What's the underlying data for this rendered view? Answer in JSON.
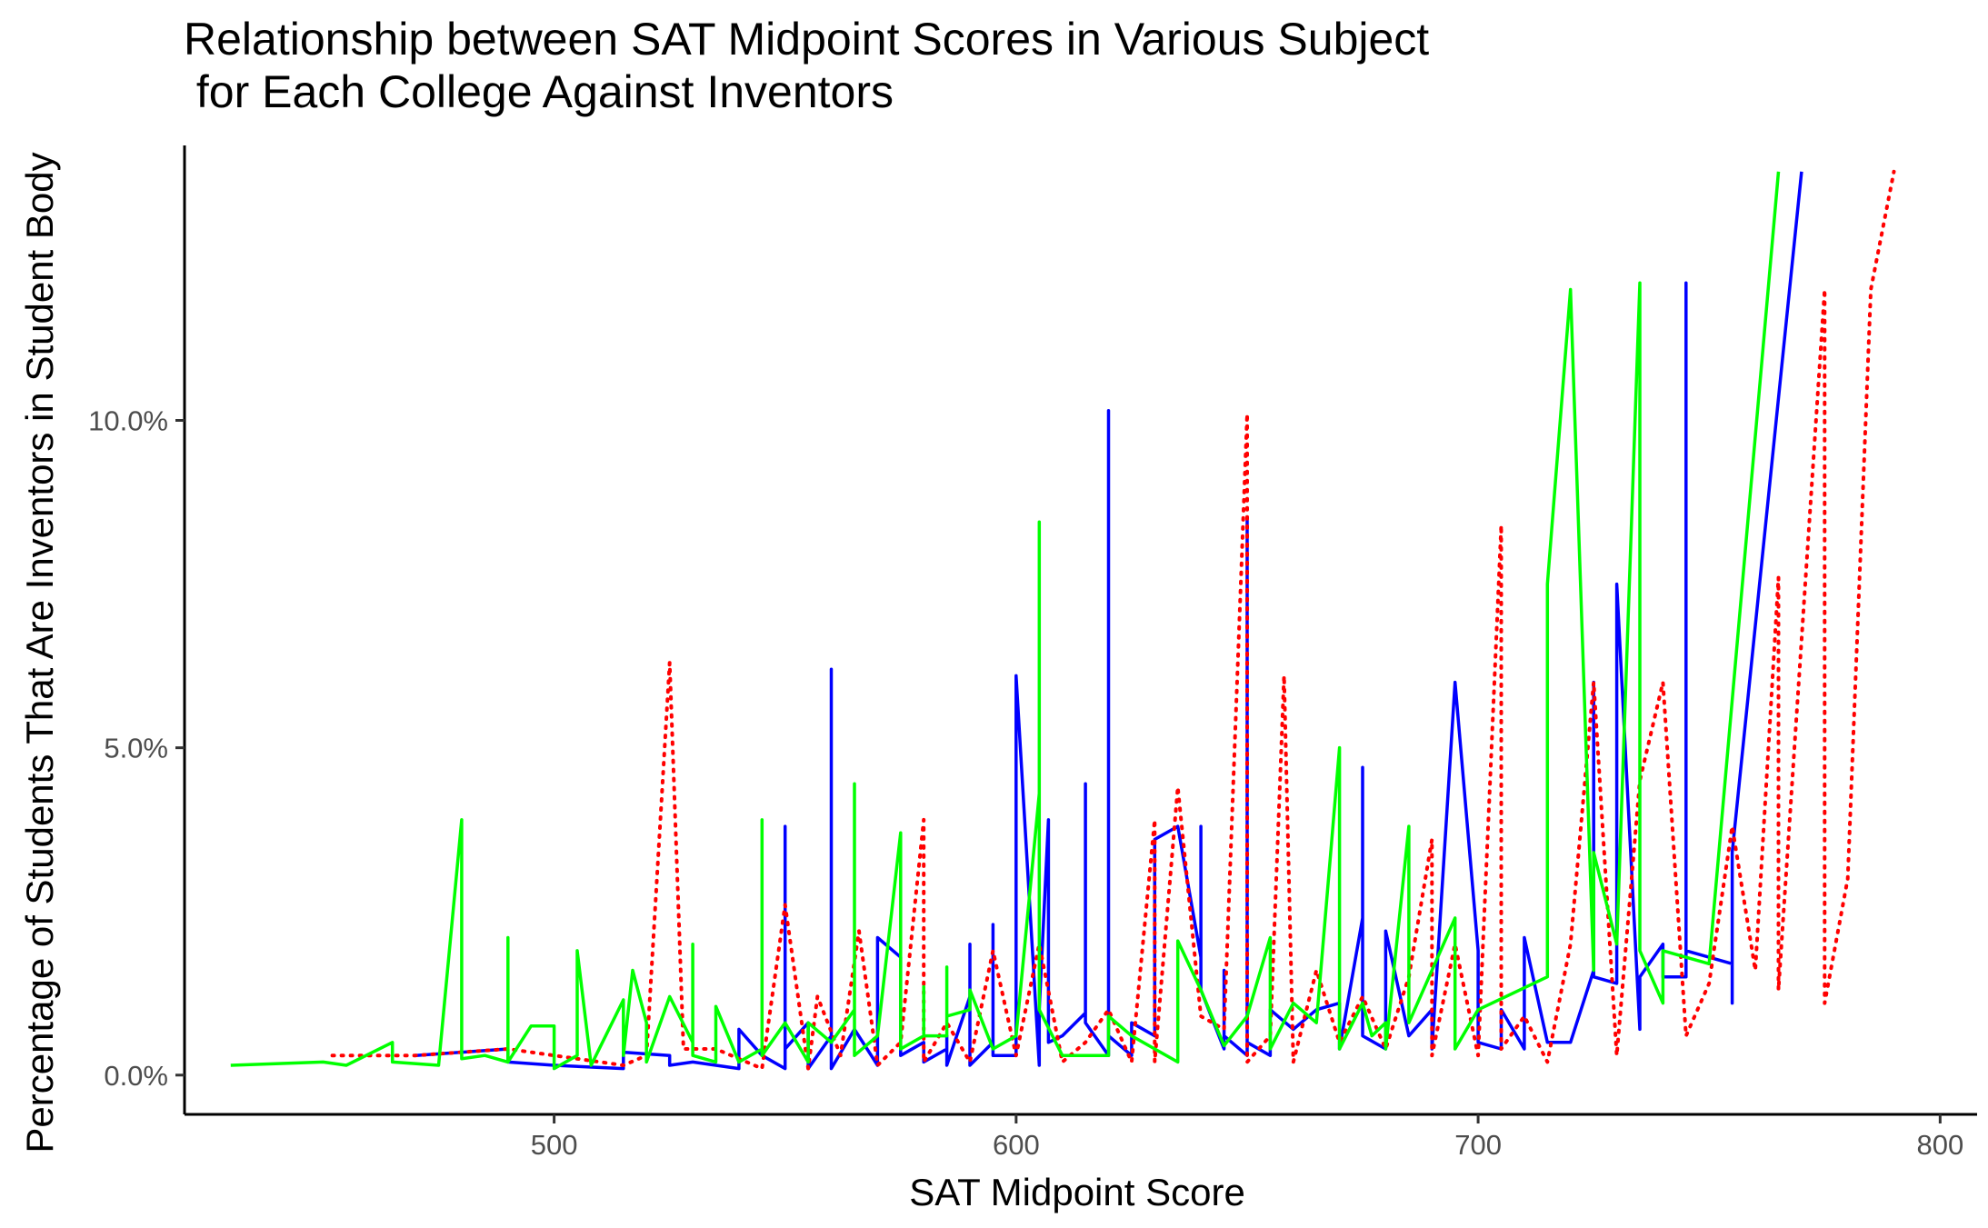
{
  "chart_data": {
    "type": "line",
    "title": "Relationship between SAT Midpoint Scores in Various Subject\n for Each College Against Inventors",
    "xlabel": "SAT Midpoint Score",
    "ylabel": "Percentage of Students That Are Inventors in Student Body",
    "xlim": [
      420,
      808
    ],
    "ylim": [
      -0.6,
      14.2
    ],
    "x_ticks": [
      500,
      600,
      700,
      800
    ],
    "x_tick_labels": [
      "500",
      "600",
      "700",
      "800"
    ],
    "y_ticks": [
      0,
      5,
      10
    ],
    "y_tick_labels": [
      "0.0%",
      "5.0%",
      "10.0%"
    ],
    "grid": false,
    "legend": "none",
    "series": [
      {
        "color": "#0000ff",
        "style": "solid",
        "points": [
          [
            470,
            0.3
          ],
          [
            490,
            0.4
          ],
          [
            490,
            0.2
          ],
          [
            500,
            0.15
          ],
          [
            515,
            0.1
          ],
          [
            515,
            0.35
          ],
          [
            525,
            0.3
          ],
          [
            525,
            0.15
          ],
          [
            530,
            0.2
          ],
          [
            540,
            0.1
          ],
          [
            540,
            0.7
          ],
          [
            545,
            0.3
          ],
          [
            550,
            0.1
          ],
          [
            550,
            3.8
          ],
          [
            550,
            0.4
          ],
          [
            555,
            0.8
          ],
          [
            555,
            0.1
          ],
          [
            560,
            0.6
          ],
          [
            560,
            6.2
          ],
          [
            560,
            0.1
          ],
          [
            565,
            0.7
          ],
          [
            570,
            0.15
          ],
          [
            570,
            2.1
          ],
          [
            575,
            1.8
          ],
          [
            575,
            0.3
          ],
          [
            580,
            0.5
          ],
          [
            580,
            0.2
          ],
          [
            585,
            0.4
          ],
          [
            585,
            0.6
          ],
          [
            585,
            0.15
          ],
          [
            590,
            1.2
          ],
          [
            590,
            2.0
          ],
          [
            590,
            0.15
          ],
          [
            595,
            0.5
          ],
          [
            595,
            2.3
          ],
          [
            595,
            0.3
          ],
          [
            600,
            0.3
          ],
          [
            600,
            6.1
          ],
          [
            605,
            0.15
          ],
          [
            605,
            1.0
          ],
          [
            607,
            3.9
          ],
          [
            607,
            0.5
          ],
          [
            610,
            0.6
          ],
          [
            615,
            0.95
          ],
          [
            615,
            4.45
          ],
          [
            615,
            0.8
          ],
          [
            620,
            0.3
          ],
          [
            620,
            10.15
          ],
          [
            620,
            0.6
          ],
          [
            625,
            0.3
          ],
          [
            625,
            0.8
          ],
          [
            630,
            0.6
          ],
          [
            630,
            3.6
          ],
          [
            635,
            3.8
          ],
          [
            640,
            1.8
          ],
          [
            640,
            3.8
          ],
          [
            640,
            1.3
          ],
          [
            645,
            0.4
          ],
          [
            645,
            1.6
          ],
          [
            645,
            0.6
          ],
          [
            650,
            0.3
          ],
          [
            650,
            8.5
          ],
          [
            650,
            0.5
          ],
          [
            655,
            0.3
          ],
          [
            655,
            1.0
          ],
          [
            660,
            0.7
          ],
          [
            665,
            1.0
          ],
          [
            670,
            1.1
          ],
          [
            670,
            0.4
          ],
          [
            675,
            2.4
          ],
          [
            675,
            4.7
          ],
          [
            675,
            0.6
          ],
          [
            680,
            0.4
          ],
          [
            680,
            2.2
          ],
          [
            685,
            0.6
          ],
          [
            690,
            1.0
          ],
          [
            690,
            0.4
          ],
          [
            695,
            6.0
          ],
          [
            700,
            1.9
          ],
          [
            700,
            0.5
          ],
          [
            705,
            0.4
          ],
          [
            705,
            1.0
          ],
          [
            710,
            0.4
          ],
          [
            710,
            2.1
          ],
          [
            715,
            0.5
          ],
          [
            720,
            0.5
          ],
          [
            725,
            1.6
          ],
          [
            725,
            6.0
          ],
          [
            725,
            1.5
          ],
          [
            730,
            1.4
          ],
          [
            730,
            7.5
          ],
          [
            735,
            0.7
          ],
          [
            735,
            1.5
          ],
          [
            740,
            2.0
          ],
          [
            740,
            1.5
          ],
          [
            745,
            1.5
          ],
          [
            745,
            12.1
          ],
          [
            745,
            1.9
          ],
          [
            755,
            1.7
          ],
          [
            755,
            1.1
          ],
          [
            755,
            3.4
          ],
          [
            770,
            13.8
          ]
        ]
      },
      {
        "color": "#ff0000",
        "style": "dotted",
        "points": [
          [
            452,
            0.3
          ],
          [
            470,
            0.3
          ],
          [
            490,
            0.4
          ],
          [
            500,
            0.3
          ],
          [
            515,
            0.15
          ],
          [
            520,
            0.3
          ],
          [
            525,
            6.3
          ],
          [
            528,
            0.4
          ],
          [
            535,
            0.4
          ],
          [
            545,
            0.1
          ],
          [
            550,
            2.6
          ],
          [
            555,
            0.1
          ],
          [
            557,
            1.2
          ],
          [
            562,
            0.3
          ],
          [
            566,
            2.2
          ],
          [
            570,
            0.15
          ],
          [
            575,
            0.5
          ],
          [
            580,
            3.9
          ],
          [
            580,
            0.2
          ],
          [
            585,
            0.8
          ],
          [
            590,
            0.2
          ],
          [
            595,
            1.9
          ],
          [
            600,
            0.3
          ],
          [
            605,
            2.0
          ],
          [
            610,
            0.2
          ],
          [
            615,
            0.5
          ],
          [
            620,
            1.0
          ],
          [
            625,
            0.2
          ],
          [
            630,
            3.9
          ],
          [
            630,
            0.2
          ],
          [
            635,
            4.4
          ],
          [
            640,
            0.9
          ],
          [
            645,
            0.7
          ],
          [
            650,
            10.1
          ],
          [
            650,
            0.2
          ],
          [
            655,
            0.6
          ],
          [
            658,
            6.1
          ],
          [
            660,
            0.2
          ],
          [
            665,
            1.6
          ],
          [
            670,
            0.5
          ],
          [
            675,
            1.2
          ],
          [
            680,
            0.4
          ],
          [
            685,
            1.5
          ],
          [
            690,
            3.6
          ],
          [
            690,
            0.3
          ],
          [
            695,
            2.0
          ],
          [
            700,
            0.3
          ],
          [
            705,
            8.4
          ],
          [
            705,
            0.4
          ],
          [
            710,
            0.9
          ],
          [
            715,
            0.2
          ],
          [
            720,
            2.0
          ],
          [
            725,
            6.0
          ],
          [
            730,
            0.3
          ],
          [
            735,
            4.5
          ],
          [
            740,
            6.0
          ],
          [
            745,
            0.6
          ],
          [
            750,
            1.4
          ],
          [
            755,
            3.8
          ],
          [
            760,
            1.6
          ],
          [
            765,
            7.6
          ],
          [
            765,
            1.3
          ],
          [
            775,
            12.0
          ],
          [
            775,
            1.1
          ],
          [
            780,
            3.0
          ],
          [
            785,
            12.0
          ],
          [
            790,
            13.8
          ]
        ]
      },
      {
        "color": "#00ff00",
        "style": "solid",
        "points": [
          [
            430,
            0.15
          ],
          [
            450,
            0.2
          ],
          [
            455,
            0.15
          ],
          [
            465,
            0.5
          ],
          [
            465,
            0.2
          ],
          [
            475,
            0.15
          ],
          [
            480,
            3.9
          ],
          [
            480,
            0.25
          ],
          [
            485,
            0.3
          ],
          [
            490,
            0.2
          ],
          [
            490,
            2.1
          ],
          [
            490,
            0.2
          ],
          [
            495,
            0.75
          ],
          [
            500,
            0.75
          ],
          [
            500,
            0.1
          ],
          [
            505,
            0.3
          ],
          [
            505,
            1.9
          ],
          [
            508,
            0.15
          ],
          [
            515,
            1.15
          ],
          [
            515,
            0.3
          ],
          [
            517,
            1.6
          ],
          [
            520,
            0.8
          ],
          [
            520,
            0.2
          ],
          [
            525,
            1.2
          ],
          [
            530,
            0.5
          ],
          [
            530,
            2.0
          ],
          [
            530,
            0.3
          ],
          [
            535,
            0.2
          ],
          [
            535,
            1.05
          ],
          [
            540,
            0.2
          ],
          [
            545,
            0.4
          ],
          [
            545,
            3.9
          ],
          [
            545,
            0.3
          ],
          [
            550,
            0.8
          ],
          [
            555,
            0.2
          ],
          [
            555,
            0.8
          ],
          [
            560,
            0.5
          ],
          [
            565,
            1.0
          ],
          [
            565,
            4.45
          ],
          [
            565,
            0.3
          ],
          [
            570,
            0.6
          ],
          [
            575,
            3.7
          ],
          [
            575,
            0.4
          ],
          [
            580,
            0.6
          ],
          [
            580,
            1.35
          ],
          [
            580,
            0.6
          ],
          [
            585,
            0.6
          ],
          [
            585,
            1.65
          ],
          [
            585,
            0.9
          ],
          [
            590,
            1.0
          ],
          [
            590,
            1.3
          ],
          [
            595,
            0.4
          ],
          [
            600,
            0.6
          ],
          [
            605,
            4.3
          ],
          [
            605,
            8.45
          ],
          [
            605,
            1.0
          ],
          [
            610,
            0.3
          ],
          [
            615,
            0.3
          ],
          [
            620,
            0.3
          ],
          [
            620,
            0.9
          ],
          [
            625,
            0.6
          ],
          [
            630,
            0.4
          ],
          [
            635,
            0.2
          ],
          [
            635,
            2.05
          ],
          [
            640,
            1.3
          ],
          [
            645,
            0.45
          ],
          [
            650,
            0.9
          ],
          [
            655,
            2.1
          ],
          [
            655,
            0.4
          ],
          [
            660,
            1.1
          ],
          [
            665,
            0.8
          ],
          [
            670,
            5.0
          ],
          [
            670,
            0.4
          ],
          [
            675,
            1.1
          ],
          [
            677,
            0.6
          ],
          [
            680,
            0.8
          ],
          [
            680,
            0.4
          ],
          [
            685,
            3.8
          ],
          [
            685,
            0.8
          ],
          [
            695,
            2.4
          ],
          [
            695,
            0.4
          ],
          [
            700,
            1.0
          ],
          [
            715,
            1.5
          ],
          [
            715,
            7.5
          ],
          [
            720,
            12.0
          ],
          [
            725,
            1.6
          ],
          [
            725,
            3.4
          ],
          [
            730,
            2.0
          ],
          [
            735,
            12.1
          ],
          [
            735,
            1.9
          ],
          [
            740,
            1.1
          ],
          [
            740,
            1.9
          ],
          [
            750,
            1.7
          ],
          [
            765,
            13.8
          ]
        ]
      }
    ]
  }
}
